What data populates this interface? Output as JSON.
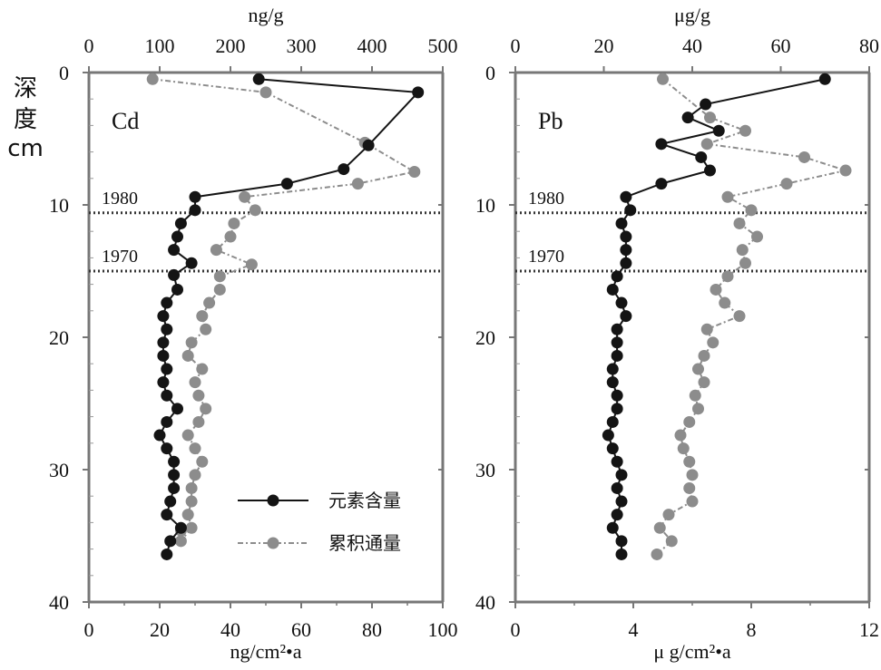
{
  "depth_label": [
    "深",
    "度",
    "cm"
  ],
  "legend": {
    "content_label": "元素含量",
    "flux_label": "累积通量",
    "content_color": "#141414",
    "flux_color": "#8c8c8c"
  },
  "markers": [
    {
      "label": "1980",
      "depth": 10.6
    },
    {
      "label": "1970",
      "depth": 15.0
    }
  ],
  "chart_data": [
    {
      "type": "line",
      "title": "Cd",
      "ylabel": "深度 cm",
      "ylim": [
        0,
        40
      ],
      "yticks": [
        0,
        10,
        20,
        30,
        40
      ],
      "xlabel_top": "ng/g",
      "xlim_top": [
        0,
        500
      ],
      "xticks_top": [
        0,
        100,
        200,
        300,
        400,
        500
      ],
      "xlabel_bottom": "ng/cm²•a",
      "xlim_bottom": [
        0,
        100
      ],
      "xticks_bottom": [
        0,
        20,
        40,
        60,
        80,
        100
      ],
      "series": [
        {
          "name": "元素含量",
          "axis": "top",
          "color": "#141414",
          "points": [
            [
              240,
              0.5
            ],
            [
              465,
              1.5
            ],
            [
              395,
              5.5
            ],
            [
              360,
              7.3
            ],
            [
              280,
              8.4
            ],
            [
              150,
              9.4
            ],
            [
              150,
              10.4
            ],
            [
              130,
              11.4
            ],
            [
              125,
              12.4
            ],
            [
              120,
              13.4
            ],
            [
              145,
              14.4
            ],
            [
              120,
              15.3
            ],
            [
              125,
              16.4
            ],
            [
              110,
              17.4
            ],
            [
              105,
              18.4
            ],
            [
              110,
              19.4
            ],
            [
              105,
              20.4
            ],
            [
              105,
              21.4
            ],
            [
              110,
              22.4
            ],
            [
              105,
              23.4
            ],
            [
              110,
              24.4
            ],
            [
              125,
              25.4
            ],
            [
              110,
              26.4
            ],
            [
              100,
              27.4
            ],
            [
              110,
              28.4
            ],
            [
              120,
              29.4
            ],
            [
              120,
              30.4
            ],
            [
              120,
              31.4
            ],
            [
              115,
              32.4
            ],
            [
              110,
              33.4
            ],
            [
              130,
              34.4
            ],
            [
              115,
              35.4
            ],
            [
              110,
              36.4
            ]
          ]
        },
        {
          "name": "累积通量",
          "axis": "bottom",
          "color": "#8c8c8c",
          "points": [
            [
              18,
              0.5
            ],
            [
              50,
              1.5
            ],
            [
              78,
              5.3
            ],
            [
              92,
              7.5
            ],
            [
              76,
              8.4
            ],
            [
              44,
              9.4
            ],
            [
              47,
              10.4
            ],
            [
              41,
              11.4
            ],
            [
              40,
              12.4
            ],
            [
              36,
              13.4
            ],
            [
              46,
              14.5
            ],
            [
              37,
              15.4
            ],
            [
              37,
              16.4
            ],
            [
              34,
              17.4
            ],
            [
              32,
              18.4
            ],
            [
              33,
              19.4
            ],
            [
              29,
              20.4
            ],
            [
              28,
              21.4
            ],
            [
              32,
              22.4
            ],
            [
              30,
              23.4
            ],
            [
              31,
              24.4
            ],
            [
              33,
              25.4
            ],
            [
              31,
              26.4
            ],
            [
              28,
              27.4
            ],
            [
              30,
              28.4
            ],
            [
              32,
              29.4
            ],
            [
              30,
              30.4
            ],
            [
              29,
              31.4
            ],
            [
              29,
              32.4
            ],
            [
              28,
              33.4
            ],
            [
              29,
              34.4
            ],
            [
              26,
              35.4
            ],
            [
              26,
              34.6
            ]
          ]
        }
      ]
    },
    {
      "type": "line",
      "title": "Pb",
      "ylim": [
        0,
        40
      ],
      "yticks": [
        0,
        10,
        20,
        30,
        40
      ],
      "xlabel_top": "μg/g",
      "xlim_top": [
        0,
        80
      ],
      "xticks_top": [
        0,
        20,
        40,
        60,
        80
      ],
      "xlabel_bottom": "μ g/cm²•a",
      "xlim_bottom": [
        0,
        12
      ],
      "xticks_bottom": [
        0,
        4,
        8,
        12
      ],
      "series": [
        {
          "name": "元素含量",
          "axis": "top",
          "color": "#141414",
          "points": [
            [
              70,
              0.5
            ],
            [
              43,
              2.4
            ],
            [
              39,
              3.4
            ],
            [
              46,
              4.4
            ],
            [
              33,
              5.4
            ],
            [
              42,
              6.4
            ],
            [
              44,
              7.4
            ],
            [
              33,
              8.4
            ],
            [
              25,
              9.4
            ],
            [
              26,
              10.4
            ],
            [
              24,
              11.4
            ],
            [
              25,
              12.4
            ],
            [
              25,
              13.4
            ],
            [
              25,
              14.4
            ],
            [
              23,
              15.4
            ],
            [
              22,
              16.4
            ],
            [
              24,
              17.4
            ],
            [
              25,
              18.4
            ],
            [
              23,
              19.4
            ],
            [
              23,
              20.4
            ],
            [
              23,
              21.4
            ],
            [
              22,
              22.4
            ],
            [
              22,
              23.4
            ],
            [
              23,
              24.4
            ],
            [
              23,
              25.4
            ],
            [
              22,
              26.4
            ],
            [
              21,
              27.4
            ],
            [
              22,
              28.4
            ],
            [
              23,
              29.4
            ],
            [
              24,
              30.4
            ],
            [
              23,
              31.4
            ],
            [
              24,
              32.4
            ],
            [
              23,
              33.4
            ],
            [
              22,
              34.4
            ],
            [
              24,
              35.4
            ],
            [
              24,
              36.4
            ]
          ]
        },
        {
          "name": "累积通量",
          "axis": "bottom",
          "color": "#8c8c8c",
          "points": [
            [
              5.0,
              0.5
            ],
            [
              6.6,
              3.4
            ],
            [
              7.8,
              4.4
            ],
            [
              6.5,
              5.4
            ],
            [
              9.8,
              6.4
            ],
            [
              11.2,
              7.4
            ],
            [
              9.2,
              8.4
            ],
            [
              7.2,
              9.4
            ],
            [
              8.0,
              10.4
            ],
            [
              7.6,
              11.4
            ],
            [
              8.2,
              12.4
            ],
            [
              7.7,
              13.4
            ],
            [
              7.8,
              14.4
            ],
            [
              7.2,
              15.4
            ],
            [
              6.8,
              16.4
            ],
            [
              7.1,
              17.4
            ],
            [
              7.6,
              18.4
            ],
            [
              6.5,
              19.4
            ],
            [
              6.7,
              20.4
            ],
            [
              6.4,
              21.4
            ],
            [
              6.2,
              22.4
            ],
            [
              6.4,
              23.4
            ],
            [
              6.1,
              24.4
            ],
            [
              6.2,
              25.4
            ],
            [
              5.9,
              26.4
            ],
            [
              5.6,
              27.4
            ],
            [
              5.7,
              28.4
            ],
            [
              5.9,
              29.4
            ],
            [
              6.0,
              30.4
            ],
            [
              5.9,
              31.4
            ],
            [
              6.0,
              32.4
            ],
            [
              5.2,
              33.4
            ],
            [
              4.9,
              34.4
            ],
            [
              5.3,
              35.4
            ],
            [
              4.8,
              36.4
            ]
          ]
        }
      ]
    }
  ]
}
